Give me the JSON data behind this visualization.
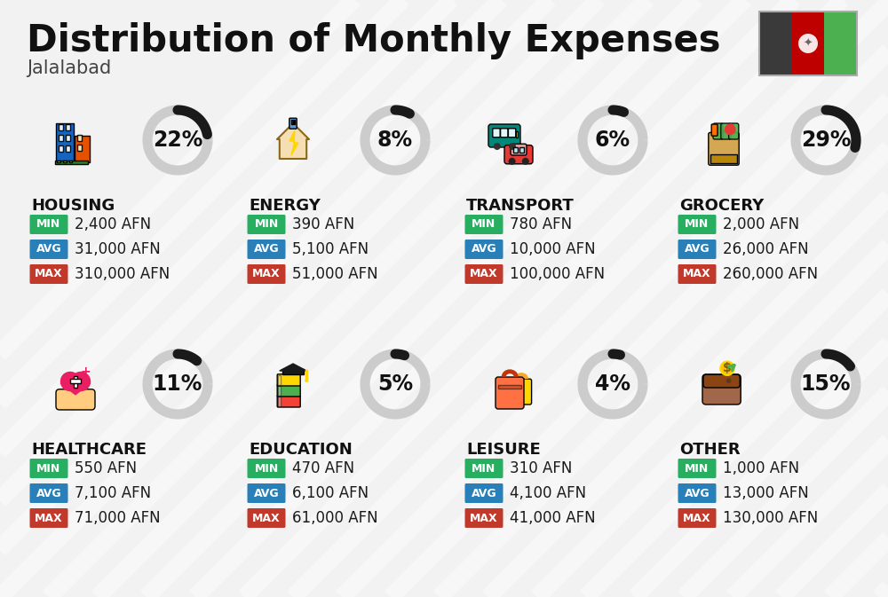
{
  "title": "Distribution of Monthly Expenses",
  "subtitle": "Jalalabad",
  "background_color": "#f2f2f2",
  "categories": [
    {
      "name": "HOUSING",
      "pct": 22,
      "min_val": "2,400 AFN",
      "avg_val": "31,000 AFN",
      "max_val": "310,000 AFN",
      "row": 0,
      "col": 0
    },
    {
      "name": "ENERGY",
      "pct": 8,
      "min_val": "390 AFN",
      "avg_val": "5,100 AFN",
      "max_val": "51,000 AFN",
      "row": 0,
      "col": 1
    },
    {
      "name": "TRANSPORT",
      "pct": 6,
      "min_val": "780 AFN",
      "avg_val": "10,000 AFN",
      "max_val": "100,000 AFN",
      "row": 0,
      "col": 2
    },
    {
      "name": "GROCERY",
      "pct": 29,
      "min_val": "2,000 AFN",
      "avg_val": "26,000 AFN",
      "max_val": "260,000 AFN",
      "row": 0,
      "col": 3
    },
    {
      "name": "HEALTHCARE",
      "pct": 11,
      "min_val": "550 AFN",
      "avg_val": "7,100 AFN",
      "max_val": "71,000 AFN",
      "row": 1,
      "col": 0
    },
    {
      "name": "EDUCATION",
      "pct": 5,
      "min_val": "470 AFN",
      "avg_val": "6,100 AFN",
      "max_val": "61,000 AFN",
      "row": 1,
      "col": 1
    },
    {
      "name": "LEISURE",
      "pct": 4,
      "min_val": "310 AFN",
      "avg_val": "4,100 AFN",
      "max_val": "41,000 AFN",
      "row": 1,
      "col": 2
    },
    {
      "name": "OTHER",
      "pct": 15,
      "min_val": "1,000 AFN",
      "avg_val": "13,000 AFN",
      "max_val": "130,000 AFN",
      "row": 1,
      "col": 3
    }
  ],
  "min_color": "#27ae60",
  "avg_color": "#2980b9",
  "max_color": "#c0392b",
  "donut_filled": "#1a1a1a",
  "donut_empty": "#cccccc",
  "title_fontsize": 30,
  "subtitle_fontsize": 15,
  "cat_fontsize": 13,
  "pct_fontsize": 17,
  "val_fontsize": 12,
  "badge_fontsize": 9
}
